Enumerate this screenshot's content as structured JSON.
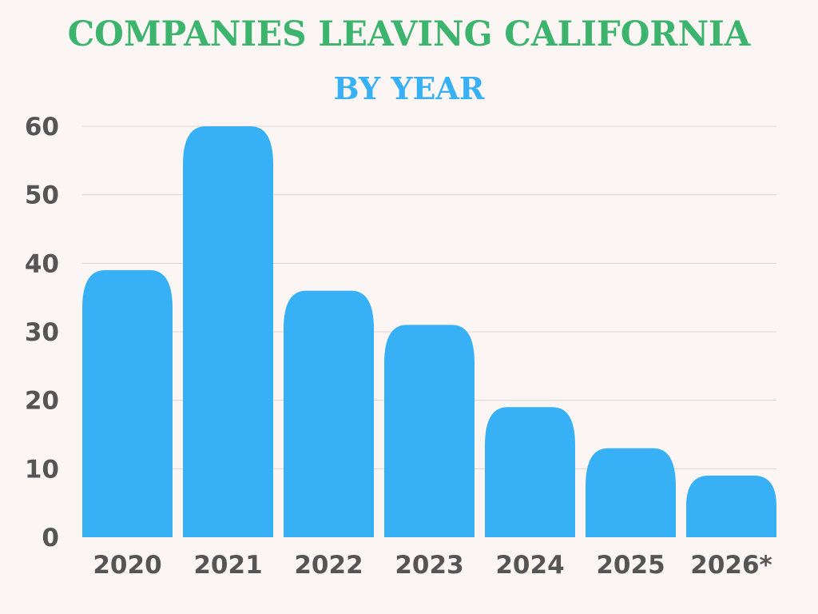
{
  "chart_data": {
    "type": "bar",
    "title": "COMPANIES LEAVING CALIFORNIA",
    "subtitle": "BY YEAR",
    "categories": [
      "2020",
      "2021",
      "2022",
      "2023",
      "2024",
      "2025",
      "2026*"
    ],
    "values": [
      39,
      60,
      36,
      31,
      19,
      13,
      9
    ],
    "yticks": [
      0,
      10,
      20,
      30,
      40,
      50,
      60
    ],
    "ylim": [
      0,
      60
    ],
    "xlabel": "",
    "ylabel": "",
    "grid": true,
    "colors": {
      "bar": "#38b0f5",
      "title": "#3cb46e",
      "subtitle": "#38b0f5",
      "ticks": "#555555",
      "grid": "#dcd6d4",
      "background": "#fbf5f3"
    }
  }
}
